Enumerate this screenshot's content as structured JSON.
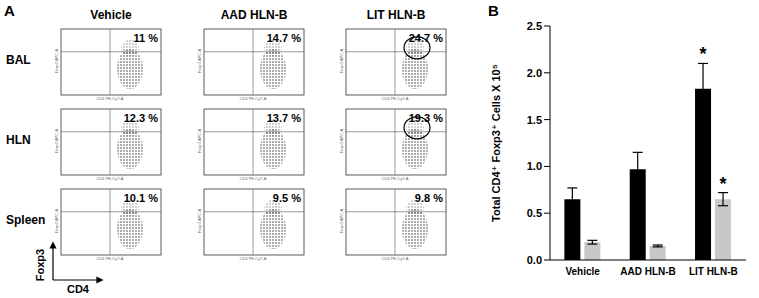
{
  "panel_labels": [
    "A",
    "B"
  ],
  "flow_panel": {
    "columns": [
      "Vehicle",
      "AAD HLN-B",
      "LIT HLN-B"
    ],
    "rows": [
      "BAL",
      "HLN",
      "Spleen"
    ],
    "y_axis_label": "Foxp3",
    "x_axis_label": "CD4",
    "y_channel": "Foxp3 APC-A",
    "x_channel": "CD4 PE-Cy7-A",
    "cells": [
      [
        {
          "label": "11 %",
          "circled": false
        },
        {
          "label": "14.7 %",
          "circled": false
        },
        {
          "label": "24.7 %",
          "circled": true
        }
      ],
      [
        {
          "label": "12.3 %",
          "circled": false
        },
        {
          "label": "13.7 %",
          "circled": false
        },
        {
          "label": "19.3 %",
          "circled": true
        }
      ],
      [
        {
          "label": "10.1 %",
          "circled": false
        },
        {
          "label": "9.5 %",
          "circled": false
        },
        {
          "label": "9.8 %",
          "circled": false
        }
      ]
    ]
  },
  "chart_data": {
    "type": "bar",
    "y_label": "Total CD4⁺ Foxp3⁺ Cells X 10⁵",
    "categories": [
      "Vehicle",
      "AAD HLN-B",
      "LIT HLN-B"
    ],
    "series": [
      {
        "color": "#000000",
        "values": [
          0.65,
          0.97,
          1.83
        ],
        "errors": [
          0.12,
          0.18,
          0.27
        ]
      },
      {
        "color": "#c8c8c8",
        "values": [
          0.19,
          0.15,
          0.65
        ],
        "errors": [
          0.02,
          0.01,
          0.07
        ]
      }
    ],
    "ylim": [
      0,
      2.5
    ],
    "yticks": [
      {
        "value": 0,
        "label": "0.0"
      },
      {
        "value": 0.5,
        "label": "0.5"
      },
      {
        "value": 1,
        "label": "1.0"
      },
      {
        "value": 1.5,
        "label": "1.5"
      },
      {
        "value": 2,
        "label": "2.0"
      },
      {
        "value": 2.5,
        "label": "2.5"
      }
    ],
    "annotations": [
      {
        "text": "*",
        "category": "LIT HLN-B",
        "series": 0
      },
      {
        "text": "*",
        "category": "LIT HLN-B",
        "series": 1
      }
    ]
  }
}
